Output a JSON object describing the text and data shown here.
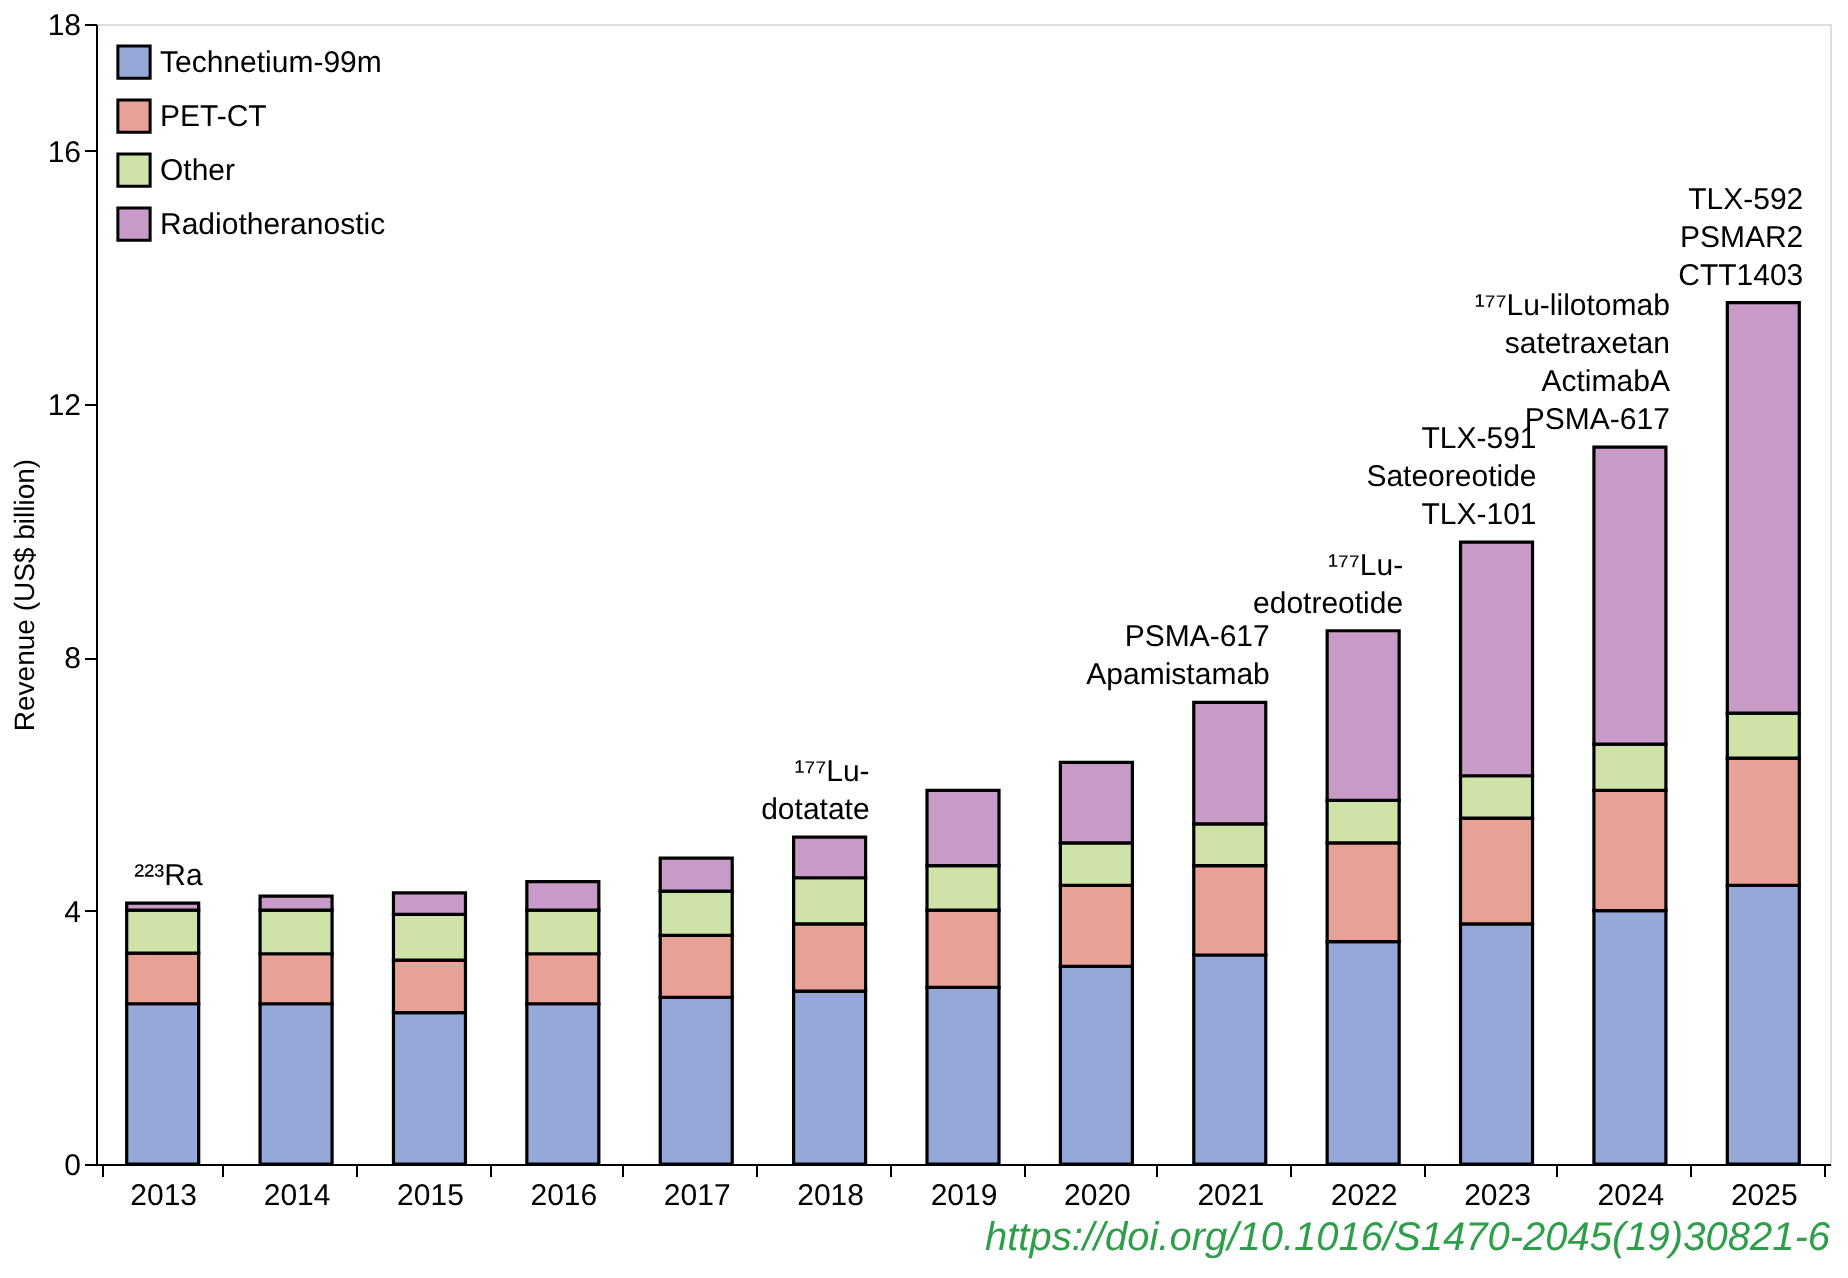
{
  "chart_data": {
    "type": "bar",
    "stacked": true,
    "ylabel": "Revenue (US$ billion)",
    "categories": [
      "2013",
      "2014",
      "2015",
      "2016",
      "2017",
      "2018",
      "2019",
      "2020",
      "2021",
      "2022",
      "2023",
      "2024",
      "2025"
    ],
    "series": [
      {
        "name": "Technetium-99m",
        "color": "#95a8d8",
        "values": [
          2.53,
          2.53,
          2.39,
          2.53,
          2.63,
          2.73,
          2.79,
          3.12,
          3.3,
          3.51,
          3.79,
          4.0,
          4.4
        ]
      },
      {
        "name": "PET-CT",
        "color": "#e8a196",
        "values": [
          0.8,
          0.79,
          0.83,
          0.79,
          0.98,
          1.06,
          1.22,
          1.28,
          1.41,
          1.56,
          1.67,
          1.9,
          2.01
        ]
      },
      {
        "name": "Other",
        "color": "#cfe3a8",
        "values": [
          0.68,
          0.69,
          0.72,
          0.69,
          0.7,
          0.73,
          0.7,
          0.67,
          0.66,
          0.67,
          0.67,
          0.73,
          0.71
        ]
      },
      {
        "name": "Radiotheranostic",
        "color": "#c79ac7",
        "values": [
          0.11,
          0.22,
          0.34,
          0.45,
          0.52,
          0.64,
          1.19,
          1.27,
          1.92,
          2.68,
          3.69,
          4.69,
          6.48
        ]
      }
    ],
    "ylim": [
      0,
      18
    ],
    "yticks": [
      0,
      4,
      8,
      12,
      16,
      18
    ],
    "grid": false,
    "legend": "top left",
    "annotations": [
      {
        "text": "²²³Ra",
        "x": "2013",
        "y": 4.12
      },
      {
        "text": "¹⁷⁷Lu-\ndotatate",
        "x": "2018",
        "y": 5.16
      },
      {
        "text": "PSMA-617\nApamistamab",
        "x": "2021",
        "y": 7.29
      },
      {
        "text": "¹⁷⁷Lu-\nedotreotide",
        "x": "2022",
        "y": 8.42
      },
      {
        "text": "TLX-591\nSateoreotide\nTLX-101",
        "x": "2023",
        "y": 9.82
      },
      {
        "text": "¹⁷⁷Lu-lilotomab\nsatetraxetan\nActimabA\nPSMA-617",
        "x": "2024",
        "y": 11.32
      },
      {
        "text": "TLX-592\nPSMAR2\nCTT1403",
        "x": "2025",
        "y": 13.6
      },
      "https://doi.org/10.1016/S1470-2045(19)30821-6"
    ]
  }
}
